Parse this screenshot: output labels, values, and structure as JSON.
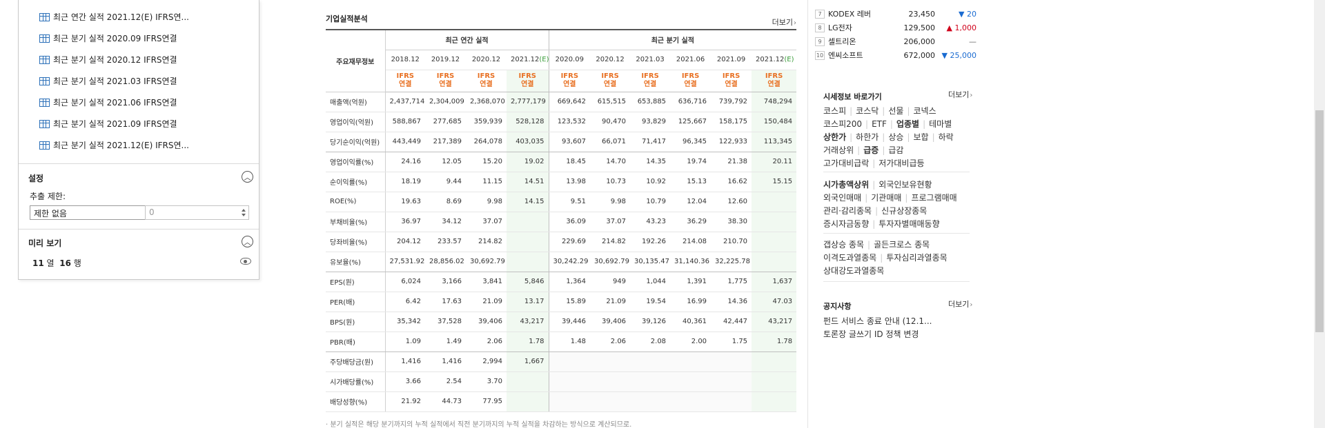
{
  "navigator": {
    "items": [
      "최근 연간 실적 2021.12(E) IFRS연...",
      "최근 분기 실적 2020.09 IFRS연결",
      "최근 분기 실적 2020.12 IFRS연결",
      "최근 분기 실적 2021.03 IFRS연결",
      "최근 분기 실적 2021.06 IFRS연결",
      "최근 분기 실적 2021.09 IFRS연결",
      "최근 분기 실적 2021.12(E) IFRS연..."
    ],
    "settings_title": "설정",
    "extract_label": "추출 제한:",
    "extract_value": "제한 없음",
    "count_value": "0",
    "preview_title": "미리 보기",
    "preview_cols": "11",
    "preview_col_unit": "열",
    "preview_rows": "16",
    "preview_row_unit": "행",
    "collapse_symbol": "︿"
  },
  "fin": {
    "title": "기업실적분석",
    "more": "더보기",
    "head_label": "주요재무정보",
    "annual_title": "최근 연간 실적",
    "quarter_title": "최근 분기 실적",
    "annual_periods": [
      "2018.12",
      "2019.12",
      "2020.12",
      "2021.12"
    ],
    "annual_est": "(E)",
    "quarter_periods": [
      "2020.09",
      "2020.12",
      "2021.03",
      "2021.06",
      "2021.09",
      "2021.12"
    ],
    "quarter_est": "(E)",
    "ifrs_top": "IFRS",
    "ifrs_bottom": "연결",
    "rows": [
      {
        "label": "매출액(억원)",
        "values": [
          "2,437,714",
          "2,304,009",
          "2,368,070",
          "2,777,179",
          "669,642",
          "615,515",
          "653,885",
          "636,716",
          "739,792",
          "748,294"
        ]
      },
      {
        "label": "영업이익(억원)",
        "values": [
          "588,867",
          "277,685",
          "359,939",
          "528,128",
          "123,532",
          "90,470",
          "93,829",
          "125,667",
          "158,175",
          "150,484"
        ]
      },
      {
        "label": "당기순이익(억원)",
        "values": [
          "443,449",
          "217,389",
          "264,078",
          "403,035",
          "93,607",
          "66,071",
          "71,417",
          "96,345",
          "122,933",
          "113,345"
        ]
      },
      {
        "label": "영업이익률(%)",
        "values": [
          "24.16",
          "12.05",
          "15.20",
          "19.02",
          "18.45",
          "14.70",
          "14.35",
          "19.74",
          "21.38",
          "20.11"
        ]
      },
      {
        "label": "순이익률(%)",
        "values": [
          "18.19",
          "9.44",
          "11.15",
          "14.51",
          "13.98",
          "10.73",
          "10.92",
          "15.13",
          "16.62",
          "15.15"
        ]
      },
      {
        "label": "ROE(%)",
        "values": [
          "19.63",
          "8.69",
          "9.98",
          "14.15",
          "9.51",
          "9.98",
          "10.79",
          "12.04",
          "12.60",
          ""
        ]
      },
      {
        "label": "부채비율(%)",
        "values": [
          "36.97",
          "34.12",
          "37.07",
          "",
          "36.09",
          "37.07",
          "43.23",
          "36.29",
          "38.30",
          ""
        ]
      },
      {
        "label": "당좌비율(%)",
        "values": [
          "204.12",
          "233.57",
          "214.82",
          "",
          "229.69",
          "214.82",
          "192.26",
          "214.08",
          "210.70",
          ""
        ]
      },
      {
        "label": "유보율(%)",
        "values": [
          "27,531.92",
          "28,856.02",
          "30,692.79",
          "",
          "30,242.29",
          "30,692.79",
          "30,135.47",
          "31,140.36",
          "32,225.78",
          ""
        ]
      },
      {
        "label": "EPS(원)",
        "values": [
          "6,024",
          "3,166",
          "3,841",
          "5,846",
          "1,364",
          "949",
          "1,044",
          "1,391",
          "1,775",
          "1,637"
        ]
      },
      {
        "label": "PER(배)",
        "values": [
          "6.42",
          "17.63",
          "21.09",
          "13.17",
          "15.89",
          "21.09",
          "19.54",
          "16.99",
          "14.36",
          "47.03"
        ]
      },
      {
        "label": "BPS(원)",
        "values": [
          "35,342",
          "37,528",
          "39,406",
          "43,217",
          "39,446",
          "39,406",
          "39,126",
          "40,361",
          "42,447",
          "43,217"
        ]
      },
      {
        "label": "PBR(배)",
        "values": [
          "1.09",
          "1.49",
          "2.06",
          "1.78",
          "1.48",
          "2.06",
          "2.08",
          "2.00",
          "1.75",
          "1.78"
        ]
      },
      {
        "label": "주당배당금(원)",
        "values": [
          "1,416",
          "1,416",
          "2,994",
          "1,667",
          "",
          "",
          "",
          "",
          "",
          ""
        ]
      },
      {
        "label": "시가배당률(%)",
        "values": [
          "3.66",
          "2.54",
          "3.70",
          "",
          "",
          "",
          "",
          "",
          "",
          ""
        ]
      },
      {
        "label": "배당성향(%)",
        "values": [
          "21.92",
          "44.73",
          "77.95",
          "",
          "",
          "",
          "",
          "",
          "",
          ""
        ]
      }
    ],
    "footnote": "· 분기 실적은 해당 분기까지의 누적 실적에서 직전 분기까지의 누적 실적을 차감하는 방식으로 계산되므로."
  },
  "ranking": [
    {
      "num": "7",
      "name": "KODEX 레버",
      "price": "23,450",
      "change": "▼ 20",
      "dir": "down"
    },
    {
      "num": "8",
      "name": "LG전자",
      "price": "129,500",
      "change": "▲ 1,000",
      "dir": "up"
    },
    {
      "num": "9",
      "name": "셀트리온",
      "price": "206,000",
      "change": "—",
      "dir": "flat"
    },
    {
      "num": "10",
      "name": "엔씨소프트",
      "price": "672,000",
      "change": "▼ 25,000",
      "dir": "down"
    }
  ],
  "quick": {
    "title": "시세정보 바로가기",
    "more": "더보기",
    "line1": [
      "코스피",
      "코스닥",
      "선물",
      "코넥스"
    ],
    "line2": [
      "코스피200",
      "ETF",
      "업종별",
      "테마별"
    ],
    "line3": [
      "상한가",
      "하한가",
      "상승",
      "보합",
      "하락"
    ],
    "line4": [
      "거래상위",
      "급증",
      "급감"
    ],
    "line5": [
      "고가대비급락",
      "저가대비급등"
    ],
    "line6": [
      "시가총액상위",
      "외국인보유현황"
    ],
    "line7": [
      "외국인매매",
      "기관매매",
      "프로그램매매"
    ],
    "line8": [
      "관리·감리종목",
      "신규상장종목"
    ],
    "line9": [
      "증시자금동향",
      "투자자별매매동향"
    ],
    "line10": [
      "갭상승 종목",
      "골든크로스 종목"
    ],
    "line11": [
      "이격도과열종목",
      "투자심리과열종목"
    ],
    "line12": [
      "상대강도과열종목"
    ]
  },
  "notice": {
    "title": "공지사항",
    "more": "더보기",
    "items": [
      "펀드 서비스 종료 안내 (12.1...",
      "토론장 글쓰기 ID 정책 변경"
    ]
  },
  "colors": {
    "orange": "#e87022",
    "up": "#d0021b",
    "down": "#1a6bd1",
    "est_bg": "#f1f9f1"
  }
}
